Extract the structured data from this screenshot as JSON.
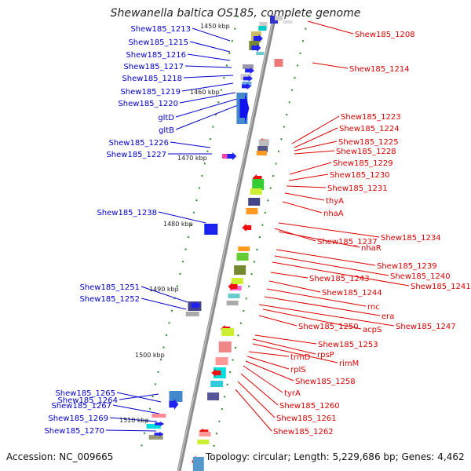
{
  "title": "Shewanella baltica OS185, complete genome",
  "accession": "Accession: NC_009665",
  "topology": "Topology: circular; Length: 5,229,686 bp; Genes: 4,462",
  "colors": {
    "left_label": "#0000cc",
    "right_label": "#dd0000",
    "backbone": "#8c8c8c",
    "tick": "#2a8a2a"
  },
  "kbp_marks": [
    "1450 kbp",
    "1460 kbp",
    "1470 kbp",
    "1480 kbp",
    "1490 kbp",
    "1500 kbp",
    "1510 kbp"
  ],
  "left_genes": [
    "Shew185_1213",
    "Shew185_1215",
    "Shew185_1216",
    "Shew185_1217",
    "Shew185_1218",
    "Shew185_1219",
    "Shew185_1220",
    "gltD",
    "gltB",
    "Shew185_1226",
    "Shew185_1227",
    "Shew185_1238",
    "Shew185_1251",
    "Shew185_1252",
    "Shew185_1264",
    "Shew185_1265",
    "Shew185_1267",
    "Shew185_1269",
    "Shew185_1270"
  ],
  "right_genes": [
    "Shew185_1208",
    "Shew185_1214",
    "Shew185_1223",
    "Shew185_1224",
    "Shew185_1225",
    "Shew185_1228",
    "Shew185_1229",
    "Shew185_1230",
    "Shew185_1231",
    "thyA",
    "nhaA",
    "Shew185_1234",
    "Shew185_1237",
    "nhaR",
    "Shew185_1239",
    "Shew185_1240",
    "Shew185_1241",
    "Shew185_1243",
    "Shew185_1244",
    "rnc",
    "era",
    "acpS",
    "Shew185_1247",
    "Shew185_1250",
    "Shew185_1253",
    "rpsP",
    "rimM",
    "trmD",
    "rplS",
    "Shew185_1258",
    "tyrA",
    "Shew185_1260",
    "Shew185_1261",
    "Shew185_1262"
  ]
}
